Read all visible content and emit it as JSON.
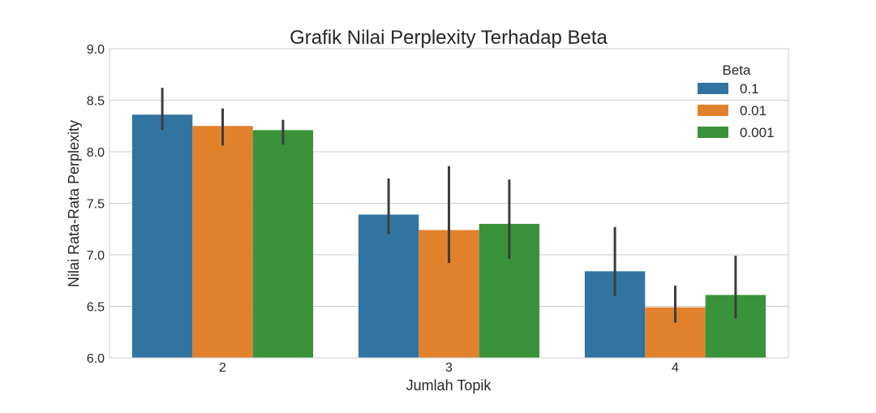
{
  "chart_data": {
    "type": "bar",
    "title": "Grafik Nilai Perplexity Terhadap Beta",
    "xlabel": "Jumlah Topik",
    "ylabel": "Nilai Rata-Rata Perplexity",
    "categories": [
      "2",
      "3",
      "4"
    ],
    "ylim": [
      6.0,
      9.0
    ],
    "yticks": [
      "6.0",
      "6.5",
      "7.0",
      "7.5",
      "8.0",
      "8.5",
      "9.0"
    ],
    "grid": true,
    "legend": {
      "title": "Beta",
      "placement": "top-right"
    },
    "series": [
      {
        "name": "0.1",
        "color": "#3274a1",
        "values": [
          8.36,
          7.39,
          6.84
        ],
        "error_low": [
          8.21,
          7.2,
          6.6
        ],
        "error_high": [
          8.62,
          7.74,
          7.27
        ]
      },
      {
        "name": "0.01",
        "color": "#e1812c",
        "values": [
          8.25,
          7.24,
          6.49
        ],
        "error_low": [
          8.06,
          6.92,
          6.34
        ],
        "error_high": [
          8.42,
          7.86,
          6.7
        ]
      },
      {
        "name": "0.001",
        "color": "#3a923a",
        "values": [
          8.21,
          7.3,
          6.61
        ],
        "error_low": [
          8.07,
          6.96,
          6.38
        ],
        "error_high": [
          8.31,
          7.73,
          6.99
        ]
      }
    ]
  }
}
